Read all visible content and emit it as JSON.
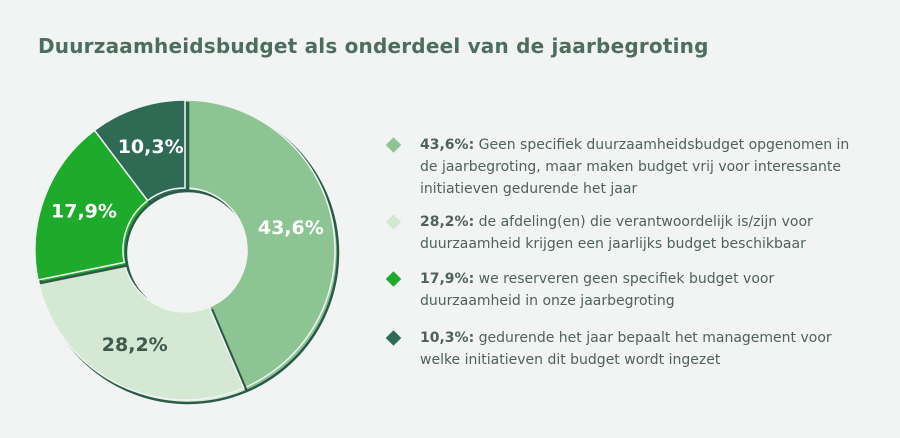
{
  "chart_data": {
    "type": "donut",
    "title": "Duurzaamheidsbudget als onderdeel van de jaarbegroting",
    "categories": [
      "Geen specifiek duurzaamheidsbudget opgenomen in de jaarbegroting, maar maken budget vrij voor interessante initiatieven gedurende het jaar",
      "de afdeling(en) die verantwoordelijk is/zijn voor duurzaamheid krijgen een jaarlijks budget beschikbaar",
      "we reserveren geen specifiek budget voor duurzaamheid in onze jaarbegroting",
      "gedurende het jaar bepaalt  het management voor welke initiatieven dit budget wordt ingezet"
    ],
    "values": [
      43.6,
      28.2,
      17.9,
      10.3
    ],
    "value_labels": [
      "43,6%",
      "28,2%",
      "17,9%",
      "10,3%"
    ],
    "legend_value_labels": [
      "43,6%:",
      "28,2%:",
      "17,9%:",
      "10,3%:"
    ],
    "colors": [
      "#8dc493",
      "#d4e8d4",
      "#1eab2b",
      "#2f6a55"
    ],
    "outline_color": "#2b5b47"
  }
}
